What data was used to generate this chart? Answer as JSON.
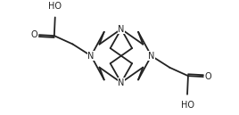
{
  "background": "#ffffff",
  "bond_color": "#222222",
  "bond_lw": 1.3,
  "font_size": 7.0,
  "fig_width": 2.68,
  "fig_height": 1.29,
  "dpi": 100,
  "xlim": [
    -1.1,
    1.1
  ],
  "ylim": [
    -0.68,
    0.68
  ]
}
